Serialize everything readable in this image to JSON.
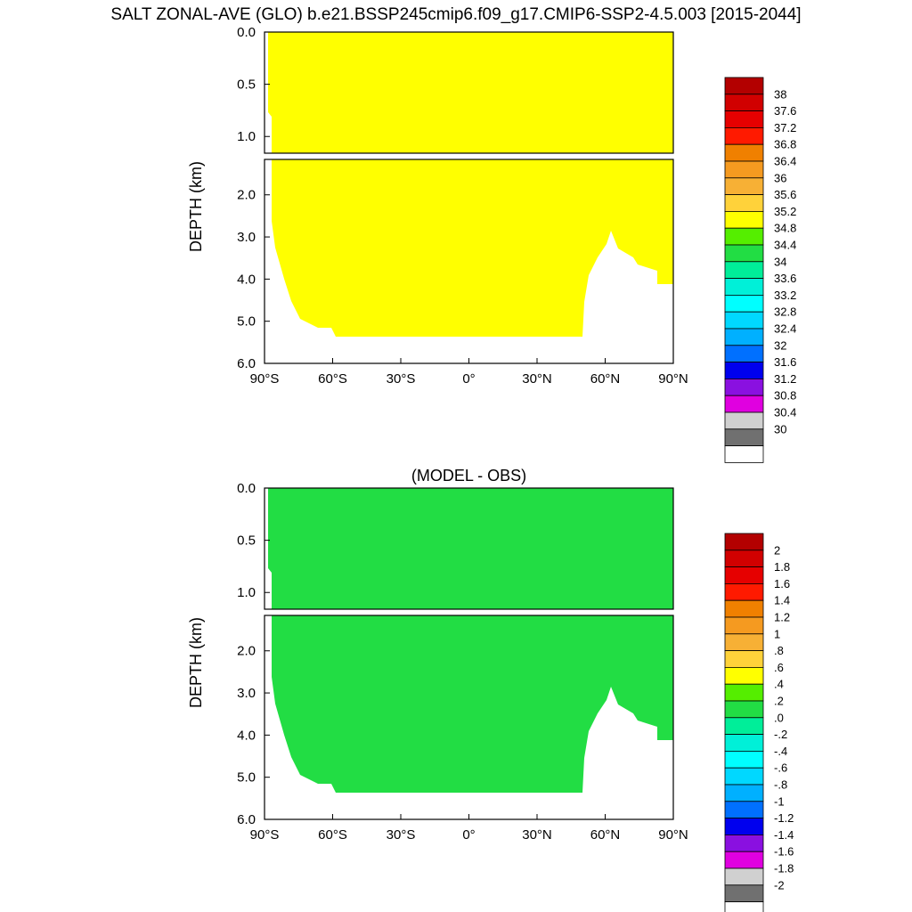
{
  "title": "SALT ZONAL-AVE (GLO) b.e21.BSSP245cmip6.f09_g17.CMIP6-SSP2-4.5.003 [2015-2044]",
  "chart_data": [
    {
      "type": "heatmap",
      "title": "",
      "ylabel": "DEPTH (km)",
      "xlabel": "",
      "x_ticks": [
        "90°S",
        "60°S",
        "30°S",
        "0°",
        "30°N",
        "60°N",
        "90°N"
      ],
      "y_ticks_upper": [
        "0.0",
        "0.5",
        "1.0"
      ],
      "y_ticks_lower": [
        "2.0",
        "3.0",
        "4.0",
        "5.0",
        "6.0"
      ],
      "colorbar_levels": [
        "38",
        "37.6",
        "37.2",
        "36.8",
        "36.4",
        "36",
        "35.6",
        "35.2",
        "34.8",
        "34.4",
        "34",
        "33.6",
        "33.2",
        "32.8",
        "32.4",
        "32",
        "31.6",
        "31.2",
        "30.8",
        "30.4",
        "30"
      ],
      "colorbar_colors": [
        "#b30000",
        "#d10000",
        "#e60000",
        "#ff1a00",
        "#f08000",
        "#f59a20",
        "#f7b035",
        "#ffd23a",
        "#ffff00",
        "#55ee00",
        "#22dd44",
        "#00ee99",
        "#00f0d8",
        "#00ffff",
        "#00d8ff",
        "#00b0ff",
        "#0070ff",
        "#0000ee",
        "#8a10e0",
        "#e000e0",
        "#d0d0d0",
        "#707070",
        "#ffffff"
      ],
      "dominant_fill": "#ffff00"
    },
    {
      "type": "heatmap",
      "title": "(MODEL - OBS)",
      "ylabel": "DEPTH (km)",
      "xlabel": "",
      "x_ticks": [
        "90°S",
        "60°S",
        "30°S",
        "0°",
        "30°N",
        "60°N",
        "90°N"
      ],
      "y_ticks_upper": [
        "0.0",
        "0.5",
        "1.0"
      ],
      "y_ticks_lower": [
        "2.0",
        "3.0",
        "4.0",
        "5.0",
        "6.0"
      ],
      "colorbar_levels": [
        "2",
        "1.8",
        "1.6",
        "1.4",
        "1.2",
        "1",
        ".8",
        ".6",
        ".4",
        ".2",
        ".0",
        "-.2",
        "-.4",
        "-.6",
        "-.8",
        "-1",
        "-1.2",
        "-1.4",
        "-1.6",
        "-1.8",
        "-2"
      ],
      "colorbar_colors": [
        "#b30000",
        "#d10000",
        "#e60000",
        "#ff1a00",
        "#f08000",
        "#f59a20",
        "#f7b035",
        "#ffd23a",
        "#ffff00",
        "#55ee00",
        "#22dd44",
        "#00ee99",
        "#00f0d8",
        "#00ffff",
        "#00d8ff",
        "#00b0ff",
        "#0070ff",
        "#0000ee",
        "#8a10e0",
        "#e000e0",
        "#d0d0d0",
        "#707070",
        "#ffffff"
      ],
      "dominant_fill": "#22dd44"
    }
  ]
}
